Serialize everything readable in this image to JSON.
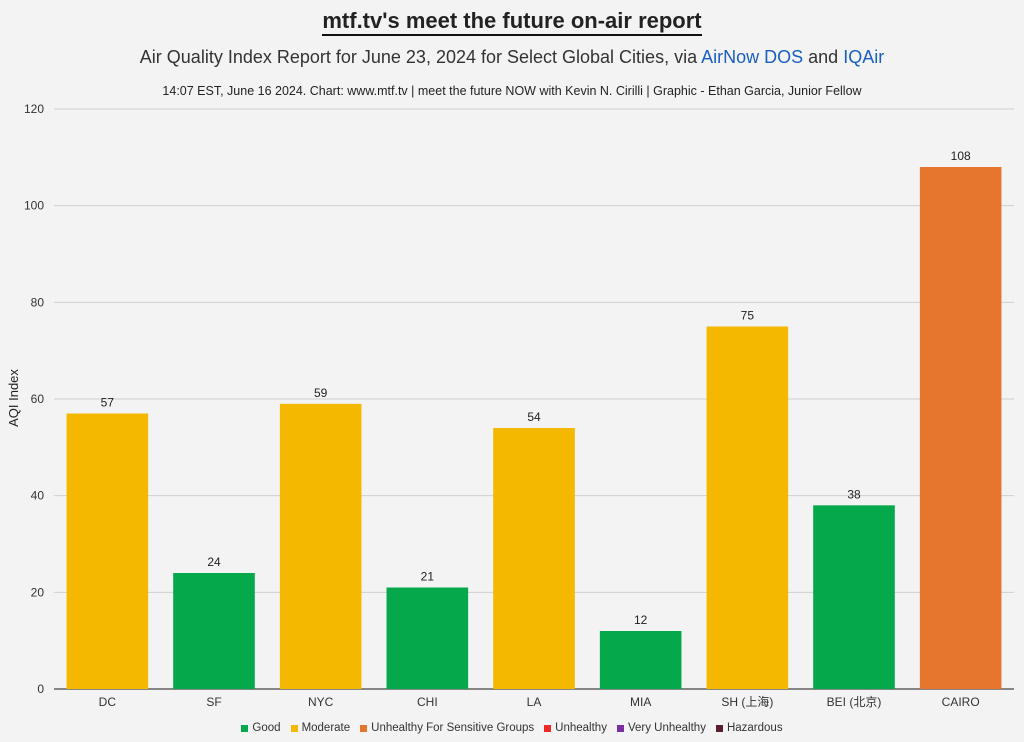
{
  "header": {
    "title": "mtf.tv's meet the future on-air report",
    "subtitle_text": "Air Quality Index Report for June 23, 2024 for Select Global Cities, via",
    "subtitle_link1": "AirNow DOS",
    "subtitle_and": "and",
    "subtitle_link2": "IQAir",
    "credit": "14:07 EST, June 16 2024. Chart: www.mtf.tv | meet the future NOW with Kevin N. Cirilli | Graphic - Ethan Garcia, Junior Fellow"
  },
  "chart_data": {
    "type": "bar",
    "ylabel": "AQI Index",
    "xlabel": "",
    "ylim": [
      0,
      120
    ],
    "yticks": [
      0,
      20,
      40,
      60,
      80,
      100,
      120
    ],
    "grid": true,
    "legend_position": "bottom",
    "categories": [
      "DC",
      "SF",
      "NYC",
      "CHI",
      "LA",
      "MIA",
      "SH (上海)",
      "BEI (北京)",
      "CAIRO"
    ],
    "values": [
      57,
      24,
      59,
      21,
      54,
      12,
      75,
      38,
      108
    ],
    "bar_categories": [
      "Moderate",
      "Good",
      "Moderate",
      "Good",
      "Moderate",
      "Good",
      "Moderate",
      "Good",
      "Unhealthy For Sensitive Groups"
    ],
    "legend": [
      {
        "name": "Good",
        "color": "#05a84a"
      },
      {
        "name": "Moderate",
        "color": "#f4b800"
      },
      {
        "name": "Unhealthy For Sensitive Groups",
        "color": "#e6762e"
      },
      {
        "name": "Unhealthy",
        "color": "#ee2a24"
      },
      {
        "name": "Very Unhealthy",
        "color": "#7a2fa3"
      },
      {
        "name": "Hazardous",
        "color": "#5a1f2a"
      }
    ]
  }
}
